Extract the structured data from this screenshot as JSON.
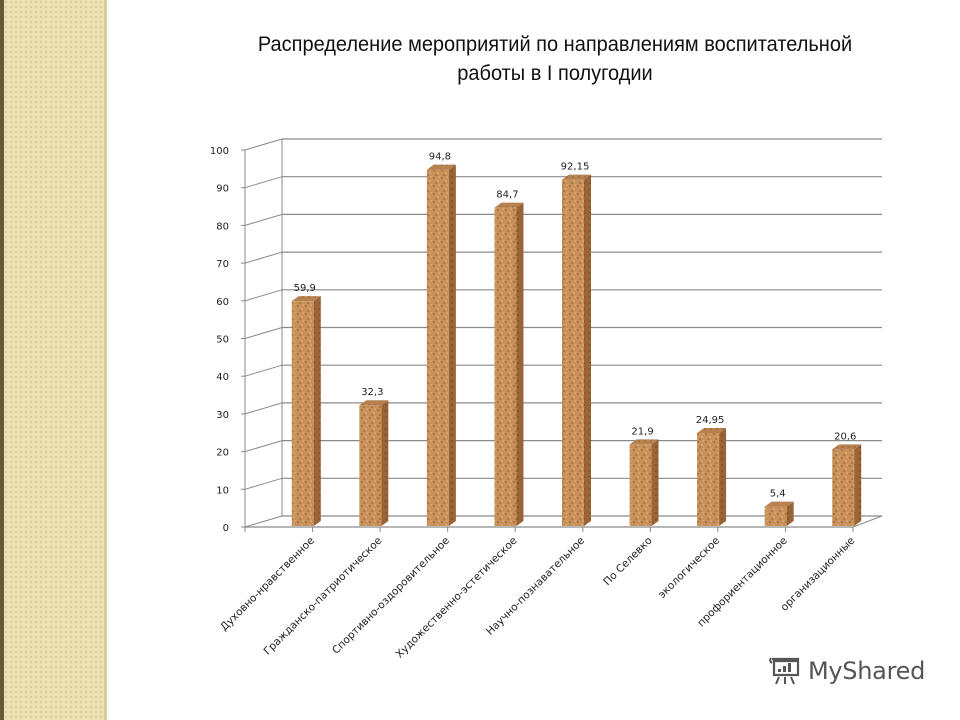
{
  "title_line1": "Распределение мероприятий по направлениям воспитательной",
  "title_line2": "работы в I полугодии",
  "watermark": {
    "icon": "presentation-board-icon",
    "text": "MyShared"
  },
  "colors": {
    "bar": "#c8915a",
    "bar_dark": "#9a6436",
    "grid": "#8a8a8a",
    "sidebar": "#ece0b4",
    "sidebar_border": "#6b5638"
  },
  "chart_data": {
    "type": "bar",
    "title": "Распределение мероприятий по направлениям воспитательной работы в I полугодии",
    "xlabel": "",
    "ylabel": "",
    "ylim": [
      0,
      100
    ],
    "yticks": [
      0,
      10,
      20,
      30,
      40,
      50,
      60,
      70,
      80,
      90,
      100
    ],
    "grid": true,
    "style": "3d-column",
    "categories": [
      "Духовно-нравственное",
      "Гражданско-патриотическое",
      "Спортивно-оздоровительное",
      "Художественно-эстетическое",
      "Научно-познавательное",
      "По Селевко",
      "экологическое",
      "профориентационное",
      "организационные"
    ],
    "values": [
      59.9,
      32.3,
      94.8,
      84.7,
      92.15,
      21.9,
      24.95,
      5.4,
      20.6
    ],
    "data_labels": [
      "59,9",
      "32,3",
      "94,8",
      "84,7",
      "92,15",
      "21,9",
      "24,95",
      "5,4",
      "20,6"
    ]
  }
}
